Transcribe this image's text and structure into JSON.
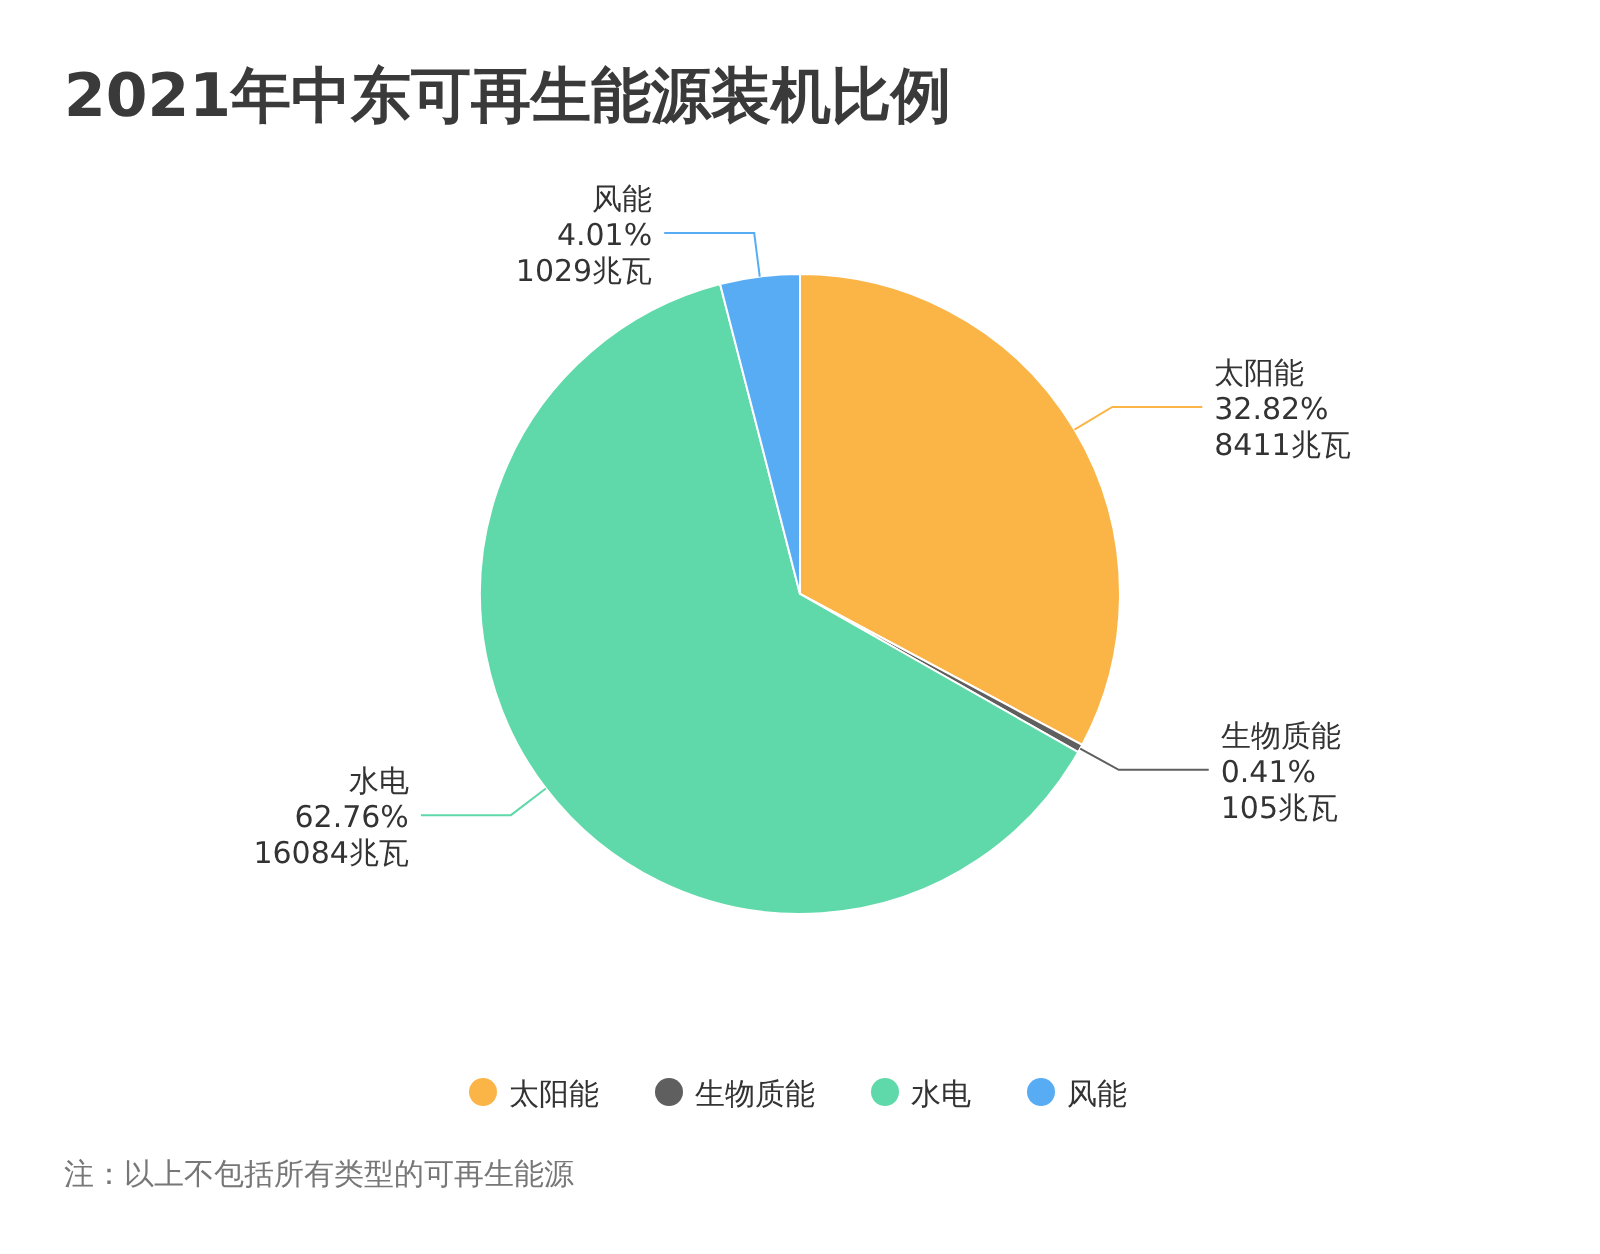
{
  "chart_data": {
    "type": "pie",
    "title": "2021年中东可再生能源装机比例",
    "categories": [
      "太阳能",
      "生物质能",
      "水电",
      "风能"
    ],
    "values": [
      8411,
      105,
      16084,
      1029
    ],
    "value_labels": [
      "32.82%\n8411兆瓦",
      "0.41%\n105兆瓦",
      "62.76%\n16084兆瓦",
      "4.01%\n1029兆瓦"
    ],
    "colors": [
      "#fbb547",
      "#5f5f5f",
      "#5fd9a9",
      "#58acf4"
    ],
    "legend": "bottom",
    "annotations": [
      "注：以上不包括所有类型的可再生能源"
    ]
  }
}
